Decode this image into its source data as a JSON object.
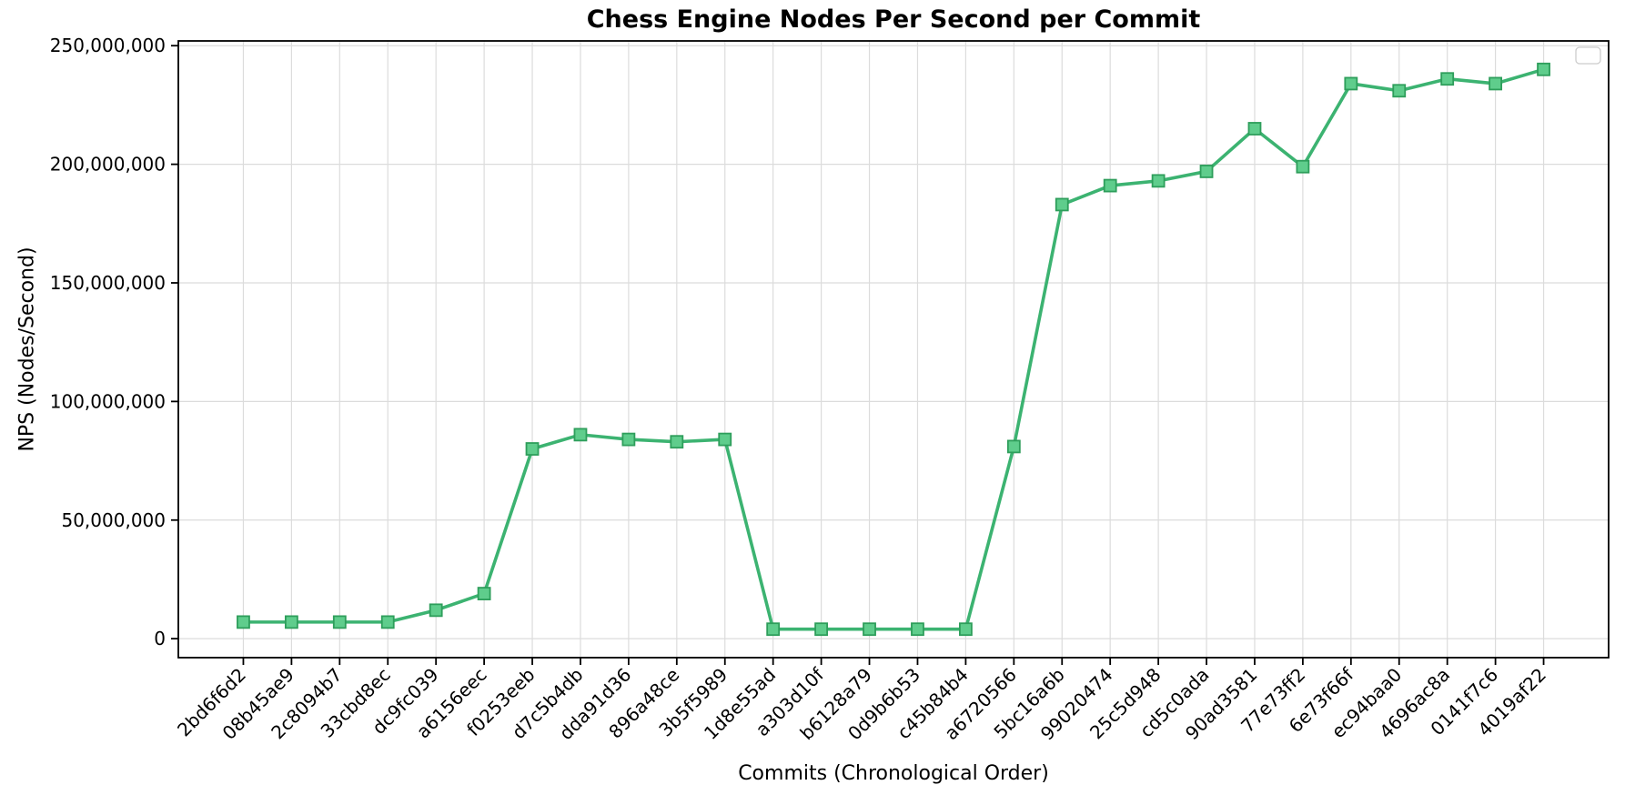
{
  "chart_data": {
    "type": "line",
    "title": "Chess Engine Nodes Per Second per Commit",
    "xlabel": "Commits (Chronological Order)",
    "ylabel": "NPS (Nodes/Second)",
    "categories": [
      "2bd6f6d2",
      "08b45ae9",
      "2c8094b7",
      "33cbd8ec",
      "dc9fc039",
      "a6156eec",
      "f0253eeb",
      "d7c5b4db",
      "dda91d36",
      "896a48ce",
      "3b5f5989",
      "1d8e55ad",
      "a303d10f",
      "b6128a79",
      "0d9b6b53",
      "c45b84b4",
      "a6720566",
      "5bc16a6b",
      "99020474",
      "25c5d948",
      "cd5c0ada",
      "90ad3581",
      "77e73ff2",
      "6e73f66f",
      "ec94baa0",
      "4696ac8a",
      "0141f7c6",
      "4019af22"
    ],
    "values": [
      7000000,
      7000000,
      7000000,
      7000000,
      12000000,
      19000000,
      80000000,
      86000000,
      84000000,
      83000000,
      84000000,
      4000000,
      4000000,
      4000000,
      4000000,
      4000000,
      81000000,
      183000000,
      191000000,
      193000000,
      197000000,
      215000000,
      199000000,
      234000000,
      231000000,
      236000000,
      234000000,
      240000000
    ],
    "yticks": [
      0,
      50000000,
      100000000,
      150000000,
      200000000,
      250000000
    ],
    "ylim": [
      -8000000,
      252000000
    ],
    "grid": true,
    "legend_visible_empty_box": true,
    "colors": {
      "line": "#3cb371",
      "marker_fill": "#5fcd8c",
      "marker_edge": "#2e9e5b",
      "grid": "#dcdcdc",
      "spine": "#000000",
      "legend_border": "#cccccc",
      "background": "#ffffff"
    }
  }
}
